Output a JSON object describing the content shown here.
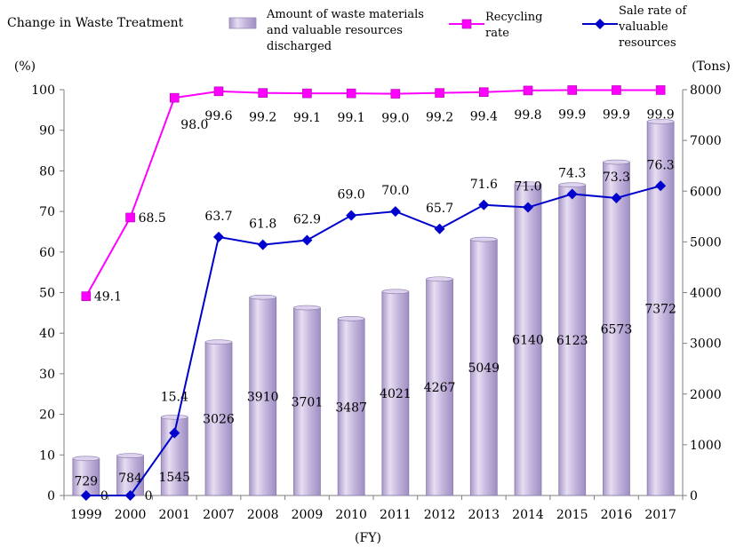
{
  "chart_data": {
    "type": "bar",
    "title": "Change in Waste Treatment",
    "xlabel": "(FY)",
    "ylabel_left": "(%)",
    "ylabel_right": "(Tons)",
    "ylim_left": [
      0,
      100
    ],
    "ylim_right": [
      0,
      8000
    ],
    "yticks_left": [
      "0",
      "10",
      "20",
      "30",
      "40",
      "50",
      "60",
      "70",
      "80",
      "90",
      "100"
    ],
    "yticks_right": [
      "0",
      "1000",
      "2000",
      "3000",
      "4000",
      "5000",
      "6000",
      "7000",
      "8000"
    ],
    "categories": [
      "1999",
      "2000",
      "2001",
      "2007",
      "2008",
      "2009",
      "2010",
      "2011",
      "2012",
      "2013",
      "2014",
      "2015",
      "2016",
      "2017"
    ],
    "legend_position": "top",
    "series": [
      {
        "name": "Amount of waste materials and valuable resources discharged",
        "type": "bar",
        "axis": "right",
        "color": "#c3b5dc",
        "values": [
          729,
          784,
          1545,
          3026,
          3910,
          3701,
          3487,
          4021,
          4267,
          5049,
          6140,
          6123,
          6573,
          7372
        ],
        "labels": [
          "729",
          "784",
          "1545",
          "3026",
          "3910",
          "3701",
          "3487",
          "4021",
          "4267",
          "5049",
          "6140",
          "6123",
          "6573",
          "7372"
        ]
      },
      {
        "name": "Recycling rate",
        "type": "line",
        "axis": "left",
        "color": "#ff00ff",
        "values": [
          49.1,
          68.5,
          98.0,
          99.6,
          99.2,
          99.1,
          99.1,
          99.0,
          99.2,
          99.4,
          99.8,
          99.9,
          99.9,
          99.9
        ],
        "labels": [
          "49.1",
          "68.5",
          "98.0",
          "99.6",
          "99.2",
          "99.1",
          "99.1",
          "99.0",
          "99.2",
          "99.4",
          "99.8",
          "99.9",
          "99.9",
          "99.9"
        ]
      },
      {
        "name": "Sale rate of valuable resources",
        "type": "line",
        "axis": "left",
        "color": "#0000cc",
        "values": [
          0,
          0,
          15.4,
          63.7,
          61.8,
          62.9,
          69.0,
          70.0,
          65.7,
          71.6,
          71.0,
          74.3,
          73.3,
          76.3
        ],
        "labels": [
          "0",
          "0",
          "15.4",
          "63.7",
          "61.8",
          "62.9",
          "69.0",
          "70.0",
          "65.7",
          "71.6",
          "71.0",
          "74.3",
          "73.3",
          "76.3"
        ]
      }
    ],
    "legend": {
      "bar_text": [
        "Amount of waste materials",
        "and valuable resources",
        "discharged"
      ],
      "recycle_text": [
        "Recycling",
        "rate"
      ],
      "sale_text": [
        "Sale rate of",
        "valuable",
        "resources"
      ]
    }
  }
}
